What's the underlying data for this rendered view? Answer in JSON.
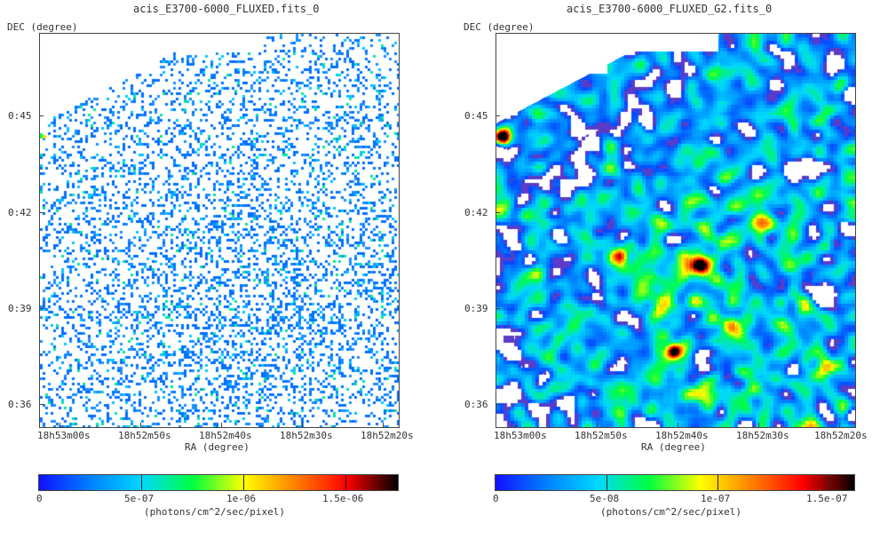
{
  "panels": [
    {
      "title": "acis_E3700-6000_FLUXED.fits_0",
      "dec_label": "DEC (degree)",
      "ra_label": "RA (degree)",
      "dec_ticks": [
        "0:45",
        "0:42",
        "0:39",
        "0:36"
      ],
      "ra_ticks": [
        "18h53m00s",
        "18h52m50s",
        "18h52m40s",
        "18h52m30s",
        "18h52m20s"
      ],
      "colorbar_ticks": [
        "0",
        "5e-07",
        "1e-06",
        "1.5e-06"
      ],
      "colorbar_unit": "(photons/cm^2/sec/pixel)"
    },
    {
      "title": "acis_E3700-6000_FLUXED_G2.fits_0",
      "dec_label": "DEC (degree)",
      "ra_label": "RA (degree)",
      "dec_ticks": [
        "0:45",
        "0:42",
        "0:39",
        "0:36"
      ],
      "ra_ticks": [
        "18h53m00s",
        "18h52m50s",
        "18h52m40s",
        "18h52m30s",
        "18h52m20s"
      ],
      "colorbar_ticks": [
        "0",
        "5e-08",
        "1e-07",
        "1.5e-07"
      ],
      "colorbar_unit": "(photons/cm^2/sec/pixel)"
    }
  ],
  "colormap": [
    "#ffffff",
    "#1010ff",
    "#0080ff",
    "#00d8ff",
    "#00ff40",
    "#ffff00",
    "#ff8000",
    "#ff0000",
    "#000000"
  ]
}
